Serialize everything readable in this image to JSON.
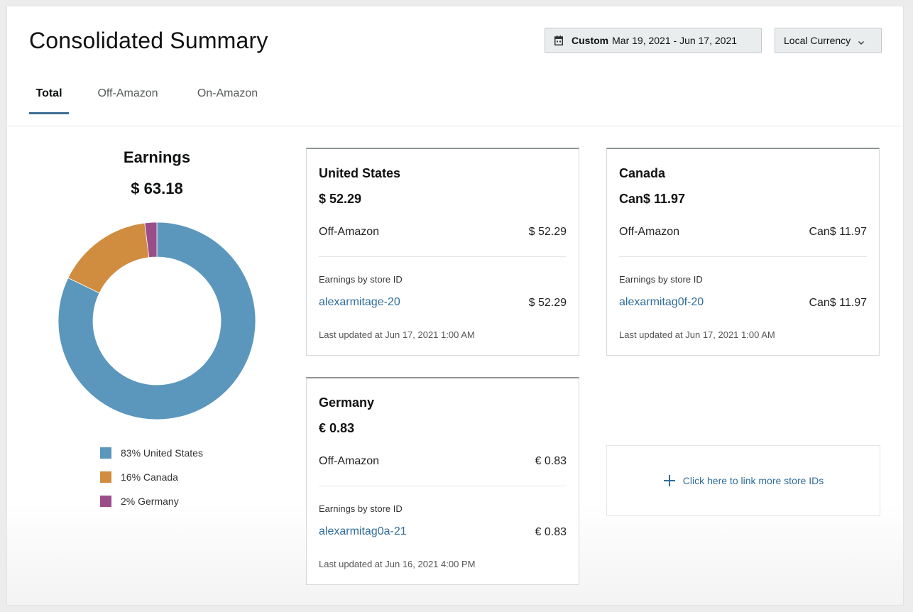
{
  "header": {
    "title": "Consolidated Summary",
    "date_range": {
      "mode": "Custom",
      "range": "Mar 19, 2021 - Jun 17, 2021",
      "icon": "calendar-icon"
    },
    "currency": {
      "label": "Local Currency",
      "icon": "chevron-down-icon"
    }
  },
  "tabs": [
    {
      "label": "Total",
      "active": true
    },
    {
      "label": "Off-Amazon",
      "active": false
    },
    {
      "label": "On-Amazon",
      "active": false
    }
  ],
  "earnings": {
    "title": "Earnings",
    "total": "$ 63.18"
  },
  "chart_data": {
    "type": "pie",
    "donut": true,
    "categories": [
      "United States",
      "Canada",
      "Germany"
    ],
    "values": [
      83,
      16,
      2
    ],
    "colors": [
      "#5b97bd",
      "#d08c3f",
      "#9b4d8a"
    ],
    "legend": [
      "83% United States",
      "16% Canada",
      "2% Germany"
    ],
    "legend_position": "bottom"
  },
  "cards": [
    {
      "country": "United States",
      "amount": "$ 52.29",
      "row_label": "Off-Amazon",
      "row_value": "$ 52.29",
      "store_label": "Earnings by store ID",
      "store_id": "alexarmitage-20",
      "store_value": "$ 52.29",
      "updated": "Last updated at Jun 17, 2021 1:00 AM"
    },
    {
      "country": "Canada",
      "amount": "Can$ 11.97",
      "row_label": "Off-Amazon",
      "row_value": "Can$ 11.97",
      "store_label": "Earnings by store ID",
      "store_id": "alexarmitag0f-20",
      "store_value": "Can$ 11.97",
      "updated": "Last updated at Jun 17, 2021 1:00 AM"
    },
    {
      "country": "Germany",
      "amount": "€ 0.83",
      "row_label": "Off-Amazon",
      "row_value": "€ 0.83",
      "store_label": "Earnings by store ID",
      "store_id": "alexarmitag0a-21",
      "store_value": "€ 0.83",
      "updated": "Last updated at Jun 16, 2021 4:00 PM"
    }
  ],
  "link_more": {
    "label": "Click here to link more store IDs",
    "icon": "plus-icon"
  }
}
